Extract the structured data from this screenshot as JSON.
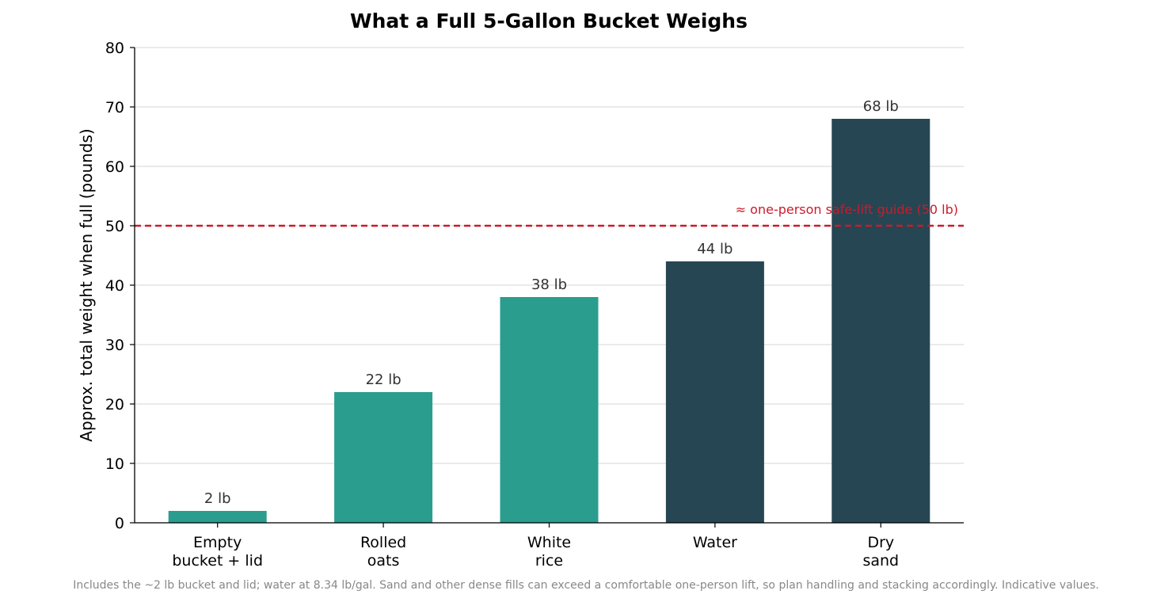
{
  "chart_data": {
    "type": "bar",
    "title": "What a Full 5-Gallon Bucket Weighs",
    "ylabel": "Approx. total weight when full (pounds)",
    "xlabel": "",
    "ylim": [
      0,
      80
    ],
    "yticks": [
      0,
      10,
      20,
      30,
      40,
      50,
      60,
      70,
      80
    ],
    "grid": "horizontal",
    "categories": [
      [
        "Empty",
        "bucket + lid"
      ],
      [
        "Rolled",
        "oats"
      ],
      [
        "White",
        "rice"
      ],
      [
        "Water"
      ],
      [
        "Dry",
        "sand"
      ]
    ],
    "values": [
      2,
      22,
      38,
      44,
      68
    ],
    "data_labels": [
      "2 lb",
      "22 lb",
      "38 lb",
      "44 lb",
      "68 lb"
    ],
    "bar_colors": [
      "#2a9d8f",
      "#2a9d8f",
      "#2a9d8f",
      "#264653",
      "#264653"
    ],
    "reference_line": {
      "value": 50,
      "label": "≈ one-person safe-lift guide (50 lb)",
      "color": "#cc1a2a",
      "style": "dashed"
    },
    "footnote": "Includes the ~2 lb bucket and lid; water at 8.34 lb/gal. Sand and other dense fills can exceed a comfortable one-person lift, so plan handling and stacking accordingly. Indicative values."
  }
}
